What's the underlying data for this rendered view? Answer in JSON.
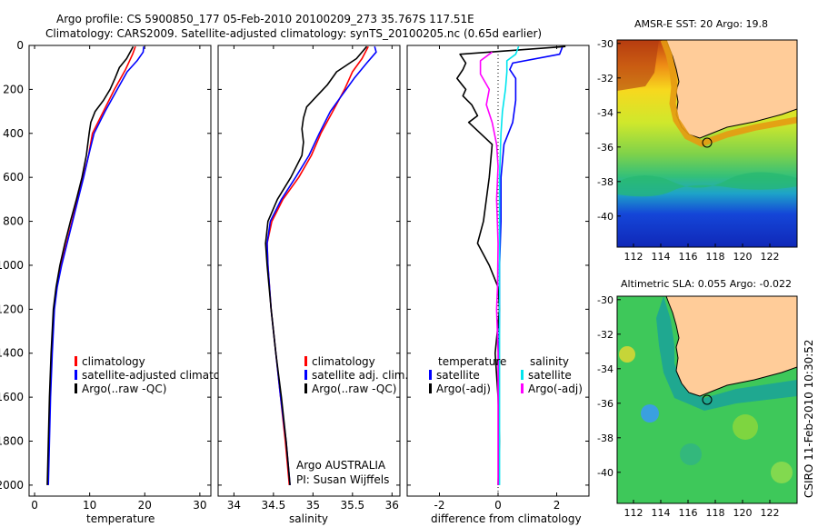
{
  "header": {
    "line1": "Argo profile: CS 5900850_177 05-Feb-2010 20100209_273 35.767S 117.51E",
    "line2": "Climatology: CARS2009. Satellite-adjusted climatology: synTS_20100205.nc (0.65d earlier)"
  },
  "credit": {
    "agency": "Argo AUSTRALIA",
    "pi": "PI: Susan Wijffels",
    "stamp": "CSIRO 11-Feb-2010 10:30:52"
  },
  "colors": {
    "climatology": "#ff0000",
    "satellite": "#0000ff",
    "argo": "#000000",
    "sat_sal": "#00e5ee",
    "argo_sal": "#ff00ff",
    "land": "#ffcc99"
  },
  "chart_data": [
    {
      "type": "line",
      "panel": "temperature",
      "xlabel": "temperature",
      "ylabel": "",
      "xlim": [
        -1,
        32
      ],
      "ylim": [
        2050,
        0
      ],
      "y_reversed": true,
      "xticks": [
        "0",
        "10",
        "20",
        "30"
      ],
      "xtick_values": [
        0,
        10,
        20,
        30
      ],
      "yticks": [
        "0",
        "200",
        "400",
        "600",
        "800",
        "1000",
        "1200",
        "1400",
        "1600",
        "1800",
        "2000"
      ],
      "ytick_values": [
        0,
        200,
        400,
        600,
        800,
        1000,
        1200,
        1400,
        1600,
        1800,
        2000
      ],
      "legend": [
        "climatology",
        "satellite-adjusted climatology",
        "Argo(..raw -QC)"
      ],
      "series": [
        {
          "name": "climatology",
          "color": "#ff0000",
          "points": [
            [
              18.3,
              5
            ],
            [
              17.8,
              40
            ],
            [
              16.5,
              110
            ],
            [
              14.5,
              200
            ],
            [
              12.5,
              300
            ],
            [
              10.5,
              400
            ],
            [
              9.8,
              500
            ],
            [
              8.8,
              600
            ],
            [
              7.8,
              700
            ],
            [
              6.8,
              800
            ],
            [
              5.8,
              900
            ],
            [
              4.8,
              1000
            ],
            [
              4.0,
              1100
            ],
            [
              3.5,
              1200
            ],
            [
              3.1,
              1400
            ],
            [
              2.8,
              1600
            ],
            [
              2.6,
              1800
            ],
            [
              2.4,
              2000
            ]
          ]
        },
        {
          "name": "satellite-adjusted climatology",
          "color": "#0000ff",
          "points": [
            [
              19.8,
              5
            ],
            [
              19.7,
              30
            ],
            [
              18.6,
              70
            ],
            [
              16.8,
              120
            ],
            [
              15.0,
              200
            ],
            [
              12.8,
              300
            ],
            [
              10.8,
              400
            ],
            [
              9.8,
              500
            ],
            [
              8.9,
              600
            ],
            [
              7.9,
              700
            ],
            [
              6.9,
              800
            ],
            [
              5.9,
              900
            ],
            [
              4.9,
              1000
            ],
            [
              4.1,
              1100
            ],
            [
              3.6,
              1200
            ],
            [
              3.2,
              1400
            ],
            [
              2.9,
              1600
            ],
            [
              2.7,
              1800
            ],
            [
              2.5,
              2000
            ]
          ]
        },
        {
          "name": "Argo(..raw -QC)",
          "color": "#000000",
          "points": [
            [
              17.9,
              5
            ],
            [
              16.7,
              60
            ],
            [
              15.4,
              100
            ],
            [
              14.6,
              150
            ],
            [
              13.7,
              200
            ],
            [
              12.5,
              250
            ],
            [
              11.0,
              300
            ],
            [
              10.2,
              350
            ],
            [
              9.9,
              400
            ],
            [
              9.4,
              500
            ],
            [
              8.6,
              600
            ],
            [
              7.6,
              700
            ],
            [
              6.5,
              800
            ],
            [
              5.5,
              900
            ],
            [
              4.6,
              1000
            ],
            [
              3.9,
              1100
            ],
            [
              3.4,
              1200
            ],
            [
              3.0,
              1400
            ],
            [
              2.7,
              1600
            ],
            [
              2.5,
              1800
            ],
            [
              2.3,
              2000
            ]
          ]
        }
      ]
    },
    {
      "type": "line",
      "panel": "salinity",
      "xlabel": "salinity",
      "ylabel": "",
      "xlim": [
        33.8,
        36.1
      ],
      "ylim": [
        2050,
        0
      ],
      "y_reversed": true,
      "xticks": [
        "34",
        "34.5",
        "35",
        "35.5",
        "36"
      ],
      "xtick_values": [
        34,
        34.5,
        35,
        35.5,
        36
      ],
      "legend": [
        "climatology",
        "satellite adj. clim.",
        "Argo(..raw -QC)"
      ],
      "series": [
        {
          "name": "climatology",
          "color": "#ff0000",
          "points": [
            [
              35.7,
              5
            ],
            [
              35.62,
              60
            ],
            [
              35.5,
              120
            ],
            [
              35.4,
              200
            ],
            [
              35.25,
              300
            ],
            [
              35.1,
              400
            ],
            [
              34.98,
              500
            ],
            [
              34.82,
              600
            ],
            [
              34.62,
              700
            ],
            [
              34.48,
              800
            ],
            [
              34.42,
              900
            ],
            [
              34.43,
              1000
            ],
            [
              34.47,
              1200
            ],
            [
              34.53,
              1400
            ],
            [
              34.59,
              1600
            ],
            [
              34.65,
              1800
            ],
            [
              34.7,
              2000
            ]
          ]
        },
        {
          "name": "satellite adj. clim.",
          "color": "#0000ff",
          "points": [
            [
              35.78,
              5
            ],
            [
              35.8,
              30
            ],
            [
              35.68,
              80
            ],
            [
              35.52,
              150
            ],
            [
              35.38,
              220
            ],
            [
              35.22,
              300
            ],
            [
              35.08,
              400
            ],
            [
              34.95,
              500
            ],
            [
              34.78,
              600
            ],
            [
              34.6,
              700
            ],
            [
              34.46,
              800
            ],
            [
              34.42,
              900
            ],
            [
              34.43,
              1000
            ],
            [
              34.47,
              1200
            ],
            [
              34.53,
              1400
            ],
            [
              34.59,
              1600
            ],
            [
              34.66,
              1800
            ],
            [
              34.71,
              2000
            ]
          ]
        },
        {
          "name": "Argo(..raw -QC)",
          "color": "#000000",
          "points": [
            [
              35.68,
              5
            ],
            [
              35.55,
              60
            ],
            [
              35.3,
              120
            ],
            [
              35.18,
              180
            ],
            [
              35.05,
              230
            ],
            [
              34.92,
              280
            ],
            [
              34.88,
              330
            ],
            [
              34.86,
              380
            ],
            [
              34.88,
              440
            ],
            [
              34.86,
              500
            ],
            [
              34.72,
              600
            ],
            [
              34.55,
              700
            ],
            [
              34.43,
              800
            ],
            [
              34.4,
              900
            ],
            [
              34.42,
              1000
            ],
            [
              34.47,
              1200
            ],
            [
              34.53,
              1400
            ],
            [
              34.6,
              1600
            ],
            [
              34.66,
              1800
            ],
            [
              34.71,
              2000
            ]
          ]
        }
      ]
    },
    {
      "type": "line",
      "panel": "difference",
      "xlabel": "difference from climatology",
      "xlim": [
        -3.1,
        3.1
      ],
      "ylim": [
        2050,
        0
      ],
      "y_reversed": true,
      "xticks": [
        "-2",
        "0",
        "2"
      ],
      "xtick_values": [
        -2,
        0,
        2
      ],
      "legend_titles": [
        "temperature",
        "salinity"
      ],
      "legend": [
        "satellite",
        "Argo(-adj)",
        "satellite",
        "Argo(-adj)"
      ],
      "series": [
        {
          "name": "temperature satellite",
          "color": "#0000ff",
          "points": [
            [
              2.2,
              5
            ],
            [
              2.1,
              40
            ],
            [
              0.5,
              80
            ],
            [
              0.4,
              110
            ],
            [
              0.6,
              150
            ],
            [
              0.6,
              250
            ],
            [
              0.5,
              350
            ],
            [
              0.2,
              450
            ],
            [
              0.1,
              600
            ],
            [
              0.1,
              800
            ],
            [
              0.05,
              1000
            ],
            [
              0.05,
              1200
            ],
            [
              0.02,
              1500
            ],
            [
              0.02,
              2000
            ]
          ]
        },
        {
          "name": "temperature Argo(-adj)",
          "color": "#000000",
          "points": [
            [
              2.3,
              5
            ],
            [
              -1.3,
              40
            ],
            [
              -1.1,
              80
            ],
            [
              -1.2,
              110
            ],
            [
              -1.4,
              150
            ],
            [
              -1.1,
              200
            ],
            [
              -1.2,
              230
            ],
            [
              -0.9,
              270
            ],
            [
              -0.7,
              320
            ],
            [
              -1.0,
              350
            ],
            [
              -0.6,
              400
            ],
            [
              -0.2,
              450
            ],
            [
              -0.3,
              600
            ],
            [
              -0.4,
              700
            ],
            [
              -0.5,
              800
            ],
            [
              -0.7,
              900
            ],
            [
              -0.3,
              1000
            ],
            [
              0.0,
              1100
            ],
            [
              0.05,
              1200
            ],
            [
              -0.1,
              1400
            ],
            [
              0.0,
              1600
            ],
            [
              0.05,
              1800
            ],
            [
              0.0,
              2000
            ]
          ]
        },
        {
          "name": "salinity satellite",
          "color": "#00e5ee",
          "points": [
            [
              0.7,
              5
            ],
            [
              0.6,
              40
            ],
            [
              0.3,
              70
            ],
            [
              0.3,
              120
            ],
            [
              0.25,
              200
            ],
            [
              0.15,
              300
            ],
            [
              0.1,
              400
            ],
            [
              0.05,
              600
            ],
            [
              0.05,
              1000
            ],
            [
              0.05,
              1400
            ],
            [
              0.05,
              2000
            ]
          ]
        },
        {
          "name": "salinity Argo(-adj)",
          "color": "#ff00ff",
          "points": [
            [
              -0.2,
              30
            ],
            [
              -0.6,
              70
            ],
            [
              -0.6,
              130
            ],
            [
              -0.3,
              200
            ],
            [
              -0.4,
              270
            ],
            [
              -0.2,
              350
            ],
            [
              -0.05,
              450
            ],
            [
              0.0,
              550
            ],
            [
              -0.05,
              700
            ],
            [
              0.0,
              900
            ],
            [
              -0.02,
              1100
            ],
            [
              -0.05,
              1200
            ],
            [
              0.0,
              1400
            ],
            [
              0.0,
              1600
            ],
            [
              0.0,
              2000
            ]
          ]
        }
      ]
    },
    {
      "type": "heatmap",
      "panel": "sst-map",
      "title": "AMSR-E SST: 20 Argo: 19.8",
      "xticks": [
        "112",
        "114",
        "116",
        "118",
        "120",
        "122"
      ],
      "xtick_values": [
        112,
        114,
        116,
        118,
        120,
        122
      ],
      "yticks": [
        "-30",
        "-32",
        "-34",
        "-36",
        "-38",
        "-40"
      ],
      "ytick_values": [
        -30,
        -32,
        -34,
        -36,
        -38,
        -40
      ],
      "xlim": [
        110.8,
        124
      ],
      "ylim": [
        -41.8,
        -29.8
      ],
      "argo_location": [
        117.51,
        -35.767
      ]
    },
    {
      "type": "heatmap",
      "panel": "sla-map",
      "title": "Altimetric SLA: 0.055 Argo: -0.022",
      "xticks": [
        "112",
        "114",
        "116",
        "118",
        "120",
        "122"
      ],
      "xtick_values": [
        112,
        114,
        116,
        118,
        120,
        122
      ],
      "yticks": [
        "-30",
        "-32",
        "-34",
        "-36",
        "-38",
        "-40"
      ],
      "ytick_values": [
        -30,
        -32,
        -34,
        -36,
        -38,
        -40
      ],
      "xlim": [
        110.8,
        124
      ],
      "ylim": [
        -41.8,
        -29.8
      ],
      "argo_location": [
        117.51,
        -35.767
      ]
    }
  ]
}
